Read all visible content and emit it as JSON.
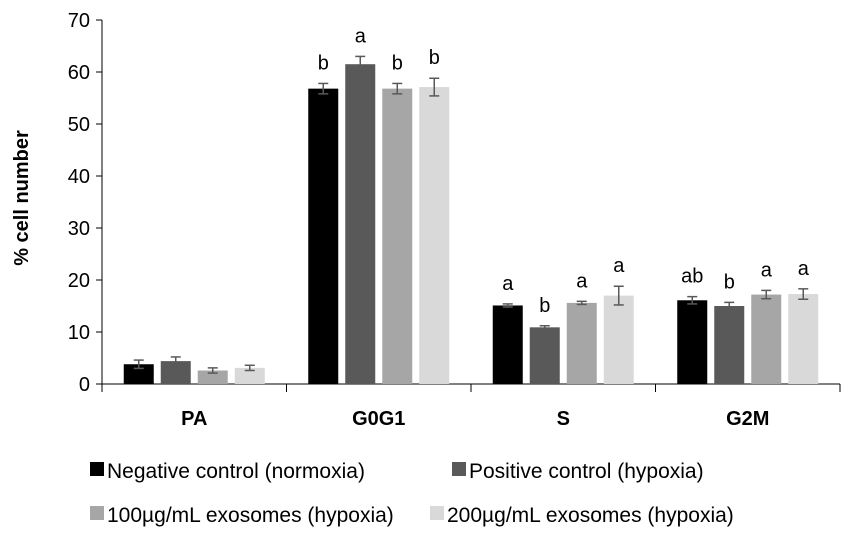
{
  "chart_data": {
    "type": "bar",
    "title": "",
    "xlabel": "",
    "ylabel": "% cell number",
    "ylim": [
      0,
      70
    ],
    "yticks": [
      0,
      10,
      20,
      30,
      40,
      50,
      60,
      70
    ],
    "grid": false,
    "legend_position": "bottom",
    "categories": [
      "PA",
      "G0G1",
      "S",
      "G2M"
    ],
    "series": [
      {
        "name": "Negative control (normoxia)",
        "color": "#000000",
        "values": [
          3.8,
          56.8,
          15.1,
          16.1
        ],
        "errors": [
          0.8,
          1.0,
          0.3,
          0.7
        ],
        "labels": [
          "",
          "b",
          "a",
          "ab"
        ]
      },
      {
        "name": "Positive control (hypoxia)",
        "color": "#595959",
        "values": [
          4.4,
          61.5,
          10.9,
          15.0
        ],
        "errors": [
          0.8,
          1.5,
          0.3,
          0.7
        ],
        "labels": [
          "",
          "a",
          "b",
          "b"
        ]
      },
      {
        "name": "100µg/mL exosomes (hypoxia)",
        "color": "#a6a6a6",
        "values": [
          2.6,
          56.8,
          15.6,
          17.2
        ],
        "errors": [
          0.5,
          1.0,
          0.3,
          0.8
        ],
        "labels": [
          "",
          "b",
          "a",
          "a"
        ]
      },
      {
        "name": "200µg/mL exosomes (hypoxia)",
        "color": "#d9d9d9",
        "values": [
          3.1,
          57.1,
          17.0,
          17.3
        ],
        "errors": [
          0.5,
          1.7,
          1.8,
          1.0
        ],
        "labels": [
          "",
          "b",
          "a",
          "a"
        ]
      }
    ]
  }
}
